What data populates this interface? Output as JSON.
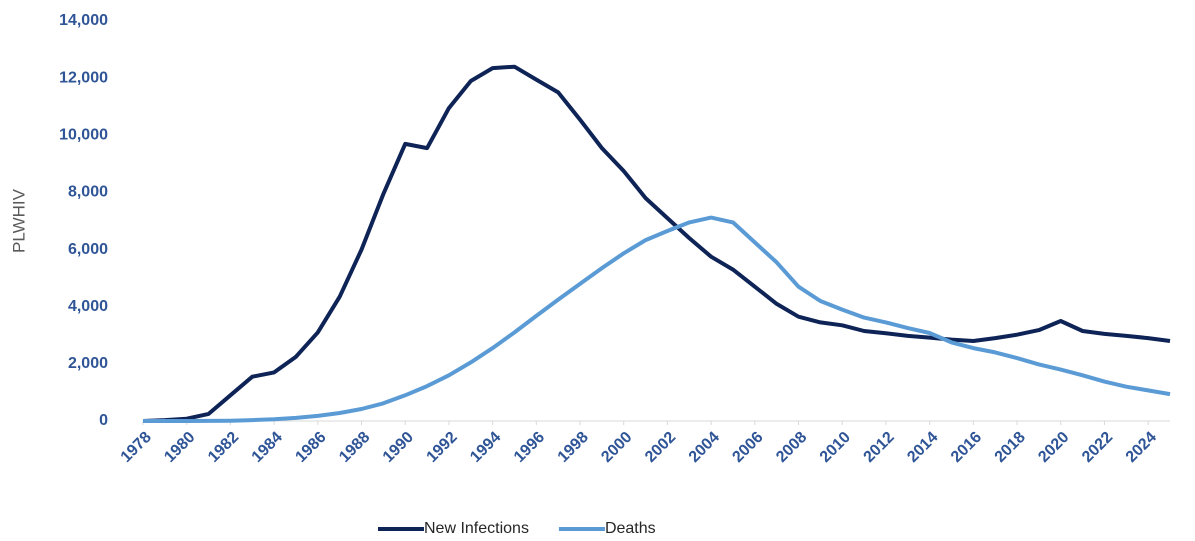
{
  "chart_data": {
    "type": "line",
    "y_label": "PLWHIV",
    "x": [
      1978,
      1979,
      1980,
      1981,
      1982,
      1983,
      1984,
      1985,
      1986,
      1987,
      1988,
      1989,
      1990,
      1991,
      1992,
      1993,
      1994,
      1995,
      1996,
      1997,
      1998,
      1999,
      2000,
      2001,
      2002,
      2003,
      2004,
      2005,
      2006,
      2007,
      2008,
      2009,
      2010,
      2011,
      2012,
      2013,
      2014,
      2015,
      2016,
      2017,
      2018,
      2019,
      2020,
      2021,
      2022,
      2023,
      2024,
      2025
    ],
    "series": [
      {
        "name": "New Infections",
        "color": "#0e2356",
        "values": [
          0,
          30,
          80,
          250,
          900,
          1550,
          1700,
          2250,
          3100,
          4350,
          6000,
          7950,
          9700,
          9550,
          10950,
          11900,
          12350,
          12400,
          11950,
          11500,
          10550,
          9550,
          8750,
          7800,
          7100,
          6400,
          5750,
          5300,
          4700,
          4100,
          3650,
          3450,
          3350,
          3150,
          3070,
          2980,
          2920,
          2850,
          2800,
          2900,
          3020,
          3180,
          3500,
          3150,
          3050,
          2980,
          2900,
          2800
        ]
      },
      {
        "name": "Deaths",
        "color": "#5b9bd5",
        "values": [
          0,
          0,
          0,
          5,
          10,
          30,
          60,
          110,
          180,
          280,
          420,
          620,
          900,
          1220,
          1600,
          2050,
          2550,
          3100,
          3680,
          4250,
          4800,
          5350,
          5870,
          6330,
          6650,
          6950,
          7120,
          6950,
          6250,
          5550,
          4700,
          4200,
          3900,
          3620,
          3450,
          3250,
          3080,
          2750,
          2550,
          2400,
          2200,
          1980,
          1800,
          1600,
          1380,
          1200,
          1070,
          940
        ]
      }
    ],
    "xlim": [
      1978,
      2025
    ],
    "xticks": [
      1978,
      1980,
      1982,
      1984,
      1986,
      1988,
      1990,
      1992,
      1994,
      1996,
      1998,
      2000,
      2002,
      2004,
      2006,
      2008,
      2010,
      2012,
      2014,
      2016,
      2018,
      2020,
      2022,
      2024
    ],
    "ylim": [
      0,
      14000
    ],
    "yticks": [
      0,
      {
        "value": 2000,
        "label": "2,000"
      },
      {
        "value": 4000,
        "label": "4,000"
      },
      {
        "value": 6000,
        "label": "6,000"
      },
      {
        "value": 8000,
        "label": "8,000"
      },
      {
        "value": 10000,
        "label": "10,000"
      },
      {
        "value": 12000,
        "label": "12,000"
      },
      {
        "value": 14000,
        "label": "14,000"
      }
    ],
    "legend": "bottom"
  }
}
